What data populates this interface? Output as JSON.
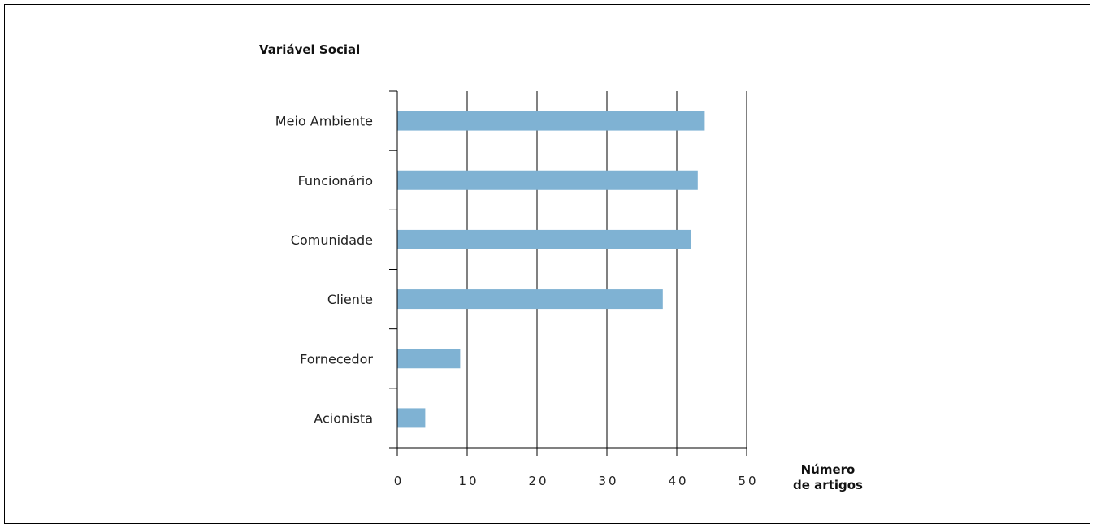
{
  "chart_data": {
    "type": "bar",
    "orientation": "horizontal",
    "title": "Variável Social",
    "xlabel": [
      "Número",
      "de artigos"
    ],
    "ylabel": "Variável Social",
    "categories": [
      "Meio Ambiente",
      "Funcionário",
      "Comunidade",
      "Cliente",
      "Fornecedor",
      "Acionista"
    ],
    "values": [
      44,
      43,
      42,
      38,
      9,
      4
    ],
    "xticks": [
      "0",
      "10",
      "20",
      "30",
      "40",
      "50"
    ],
    "xlim": [
      0,
      50
    ],
    "grid": true,
    "bar_color": "#7fb2d3"
  }
}
